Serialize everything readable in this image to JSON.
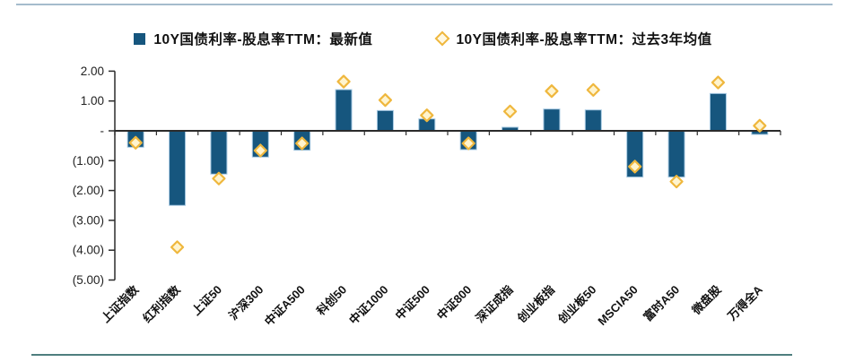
{
  "page": {
    "background": "#ffffff",
    "top_rule_color": "#a5bccd",
    "bottom_rule_color": "#4e7e7e"
  },
  "legend": {
    "items": [
      {
        "label": "10Y国债利率-股息率TTM：最新值",
        "marker": "square",
        "color": "#16567e"
      },
      {
        "label": "10Y国债利率-股息率TTM：过去3年均值",
        "marker": "diamond",
        "color": "#efb73d"
      }
    ]
  },
  "chart_data": {
    "type": "bar",
    "title": "",
    "xlabel": "",
    "ylabel": "",
    "categories": [
      "上证指数",
      "红利指数",
      "上证50",
      "沪深300",
      "中证A500",
      "科创50",
      "中证1000",
      "中证500",
      "中证800",
      "深证成指",
      "创业板指",
      "创业板50",
      "MSCIA50",
      "富时A50",
      "微盘股",
      "万得全A"
    ],
    "series": [
      {
        "name": "10Y国债利率-股息率TTM：最新值",
        "type": "bar",
        "color": "#16567e",
        "edge_color": "#a6c9e2",
        "values": [
          -0.55,
          -2.5,
          -1.45,
          -0.88,
          -0.65,
          1.38,
          0.68,
          0.4,
          -0.63,
          0.12,
          0.73,
          0.7,
          -1.55,
          -1.55,
          1.25,
          -0.12
        ]
      },
      {
        "name": "10Y国债利率-股息率TTM：过去3年均值",
        "type": "scatter",
        "marker": "diamond",
        "color": "#efb73d",
        "fill_color": "#fff4ce",
        "values": [
          -0.4,
          -3.9,
          -1.6,
          -0.66,
          -0.42,
          1.65,
          1.03,
          0.52,
          -0.42,
          0.65,
          1.33,
          1.37,
          -1.2,
          -1.7,
          1.62,
          0.17
        ]
      }
    ],
    "ylim": [
      -5,
      2
    ],
    "y_ticks": [
      2,
      1,
      0,
      -1,
      -2,
      -3,
      -4,
      -5
    ],
    "y_tick_labels": [
      "2.00",
      "1.00",
      "-",
      "(1.00)",
      "(2.00)",
      "(3.00)",
      "(4.00)",
      "(5.00)"
    ],
    "grid": false,
    "legend_position": "top",
    "axis_color": "#2b2b2b"
  }
}
